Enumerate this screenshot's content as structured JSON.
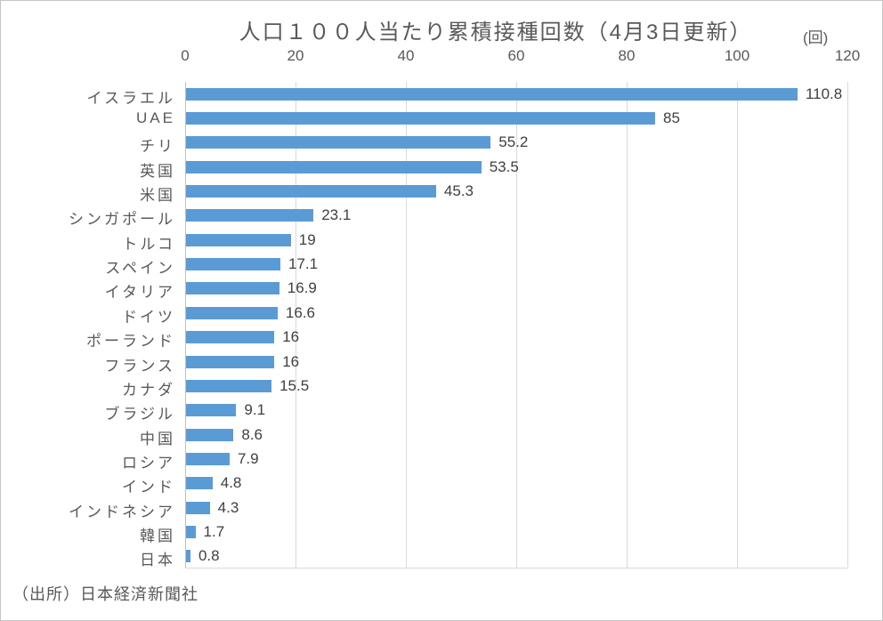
{
  "chart_data": {
    "type": "bar",
    "orientation": "horizontal",
    "title": "人口１００人当たり累積接種回数（4月3日更新）",
    "unit_label": "(回)",
    "categories": [
      "イスラエル",
      "UAE",
      "チリ",
      "英国",
      "米国",
      "シンガポール",
      "トルコ",
      "スペイン",
      "イタリア",
      "ドイツ",
      "ポーランド",
      "フランス",
      "カナダ",
      "ブラジル",
      "中国",
      "ロシア",
      "インド",
      "インドネシア",
      "韓国",
      "日本"
    ],
    "values": [
      110.8,
      85,
      55.2,
      53.5,
      45.3,
      23.1,
      19,
      17.1,
      16.9,
      16.6,
      16,
      16,
      15.5,
      9.1,
      8.6,
      7.9,
      4.8,
      4.3,
      1.7,
      0.8
    ],
    "value_labels": [
      "110.8",
      "85",
      "55.2",
      "53.5",
      "45.3",
      "23.1",
      "19",
      "17.1",
      "16.9",
      "16.6",
      "16",
      "16",
      "15.5",
      "9.1",
      "8.6",
      "7.9",
      "4.8",
      "4.3",
      "1.7",
      "0.8"
    ],
    "xlim": [
      0,
      120
    ],
    "x_ticks": [
      "0",
      "20",
      "40",
      "60",
      "80",
      "100",
      "120"
    ],
    "grid": true,
    "legend": "none",
    "bar_color": "#5b9bd5",
    "gridline_color": "#d9d9d9",
    "axis_text_color": "#595959",
    "value_text_color": "#404040"
  },
  "source": "（出所）日本経済新聞社"
}
